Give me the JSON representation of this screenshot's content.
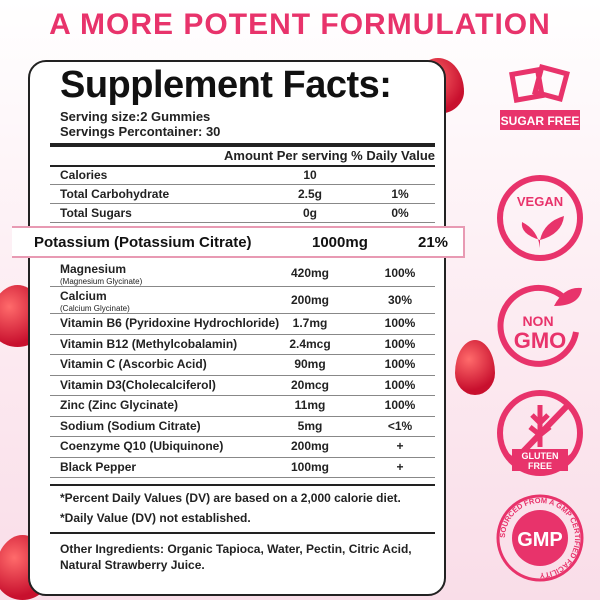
{
  "headline": "A MORE POTENT FORMULATION",
  "label": {
    "title": "Supplement Facts:",
    "serving_size": "Serving size:2 Gummies",
    "servings_per_container": "Servings Percontainer: 30",
    "header": "Amount Per serving % Daily Value",
    "top_rows": [
      {
        "name": "Calories",
        "amount": "10",
        "dv": ""
      },
      {
        "name": "Total Carbohydrate",
        "amount": "2.5g",
        "dv": "1%"
      },
      {
        "name": "Total Sugars",
        "amount": "0g",
        "dv": "0%"
      }
    ],
    "highlight": {
      "name": "Potassium (Potassium Citrate)",
      "amount": "1000mg",
      "dv": "21%"
    },
    "rows": [
      {
        "name": "Magnesium",
        "sub": "(Magnesium Glycinate)",
        "amount": "420mg",
        "dv": "100%"
      },
      {
        "name": "Calcium",
        "sub": "(Calcium Glycinate)",
        "amount": "200mg",
        "dv": "30%"
      },
      {
        "name": "Vitamin B6 (Pyridoxine Hydrochloride)",
        "amount": "1.7mg",
        "dv": "100%"
      },
      {
        "name": "Vitamin B12 (Methylcobalamin)",
        "amount": "2.4mcg",
        "dv": "100%"
      },
      {
        "name": "Vitamin C (Ascorbic Acid)",
        "amount": "90mg",
        "dv": "100%"
      },
      {
        "name": "Vitamin D3(Cholecalciferol)",
        "amount": "20mcg",
        "dv": "100%"
      },
      {
        "name": "Zinc (Zinc Glycinate)",
        "amount": "11mg",
        "dv": "100%"
      },
      {
        "name": "Sodium (Sodium Citrate)",
        "amount": "5mg",
        "dv": "<1%"
      },
      {
        "name": "Coenzyme Q10 (Ubiquinone)",
        "amount": "200mg",
        "dv": "+"
      },
      {
        "name": "Black Pepper",
        "amount": "100mg",
        "dv": "+"
      }
    ],
    "footnote1": "*Percent Daily Values (DV) are based on a 2,000 calorie diet.",
    "footnote2": "*Daily Value (DV) not established.",
    "ingredients1": "Other Ingredients: Organic Tapioca, Water, Pectin, Citric Acid,",
    "ingredients2": "Natural Strawberry Juice."
  },
  "badges": [
    {
      "icon": "sugar-cubes-icon",
      "text": "SUGAR FREE"
    },
    {
      "icon": "leaf-icon",
      "text": "VEGAN"
    },
    {
      "icon": "leaf-icon",
      "text": "NON GMO"
    },
    {
      "icon": "wheat-crossed-icon",
      "text": "GLUTEN FREE"
    },
    {
      "icon": "gmp-seal-icon",
      "text": "GMP",
      "ring": "SOURCED FROM A GMP CERTIFIED FACILITY"
    }
  ],
  "colors": {
    "accent": "#e8336b",
    "background": "#fce9f0"
  }
}
